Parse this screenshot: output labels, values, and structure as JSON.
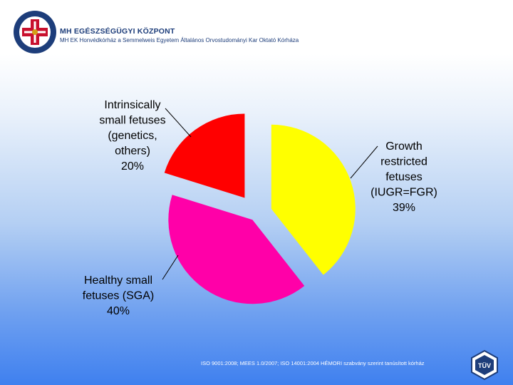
{
  "header": {
    "org_name": "MH EGÉSZSÉGÜGYI KÖZPONT",
    "org_subtitle": "MH EK Honvédkórház a Semmelweis Egyetem Általános Orvostudományi Kar Oktató Kórháza",
    "logo_text": "MH EGÉSZSÉGÜGYI KÖZPONT"
  },
  "chart_data": {
    "type": "pie",
    "title": "",
    "slices": [
      {
        "name": "Growth restricted fetuses (IUGR=FGR)",
        "lines": [
          "Growth",
          "restricted",
          "fetuses",
          "(IUGR=FGR)",
          "39%"
        ],
        "value": 39,
        "color": "#ffff00"
      },
      {
        "name": "Healthy small fetuses (SGA)",
        "lines": [
          "Healthy small",
          "fetuses (SGA)",
          "40%"
        ],
        "value": 40,
        "color": "#ff00a8"
      },
      {
        "name": "Intrinsically small fetuses (genetics, others)",
        "lines": [
          "Intrinsically",
          "small fetuses",
          "(genetics,",
          "others)",
          "20%"
        ],
        "value": 20,
        "color": "#ff0000"
      }
    ]
  },
  "footer": {
    "certification": "ISO 9001:2008; MEES 1.0/2007; ISO 14001:2004 HÉMORI szabvány szerint tanúsított kórház",
    "badge": "TÜV"
  },
  "colors": {
    "brand_blue": "#1d3d7a",
    "logo_red": "#c8102e"
  }
}
